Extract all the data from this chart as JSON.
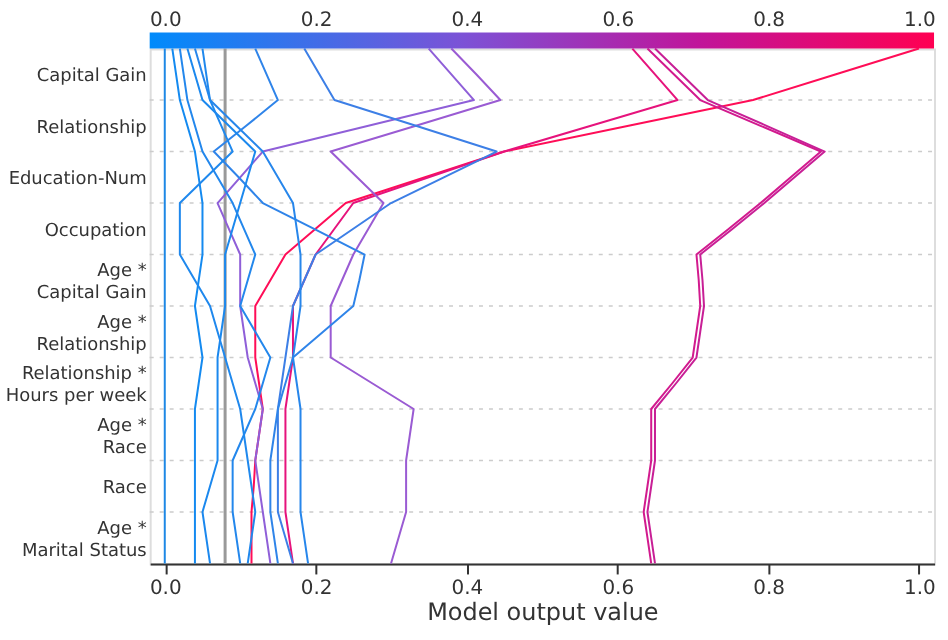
{
  "chart_data": {
    "type": "line",
    "orientation": "horizontal",
    "xlabel": "Model output value",
    "xlim": [
      -0.02,
      1.02
    ],
    "xticks": [
      {
        "value": 0,
        "label": "0.0"
      },
      0.2,
      0.4,
      0.6,
      0.8,
      {
        "value": 1,
        "label": "1.0"
      }
    ],
    "x2lim": [
      -0.02,
      1.02
    ],
    "x2ticks": [
      {
        "value": 0,
        "label": "0.0"
      },
      0.2,
      0.4,
      0.6,
      0.8,
      {
        "value": 1,
        "label": "1.0"
      }
    ],
    "categories": [
      null,
      "Capital Gain",
      null,
      "Relationship",
      null,
      "Education-Num",
      null,
      "Occupation",
      null,
      "Age *\nCapital Gain",
      null,
      "Age *\nRelationship",
      null,
      "Relationship *\nHours per week",
      null,
      "Age *\nRace",
      null,
      "Race",
      null,
      "Age *\nMarital Status",
      null
    ],
    "grid": "y",
    "line_style": "solid",
    "marker": "none",
    "legend": false,
    "ref_lines": [
      {
        "axis": "x",
        "value": 0.08,
        "label": null,
        "color": "#999999"
      }
    ],
    "series": [
      {
        "color": "#ff0d57",
        "values": [
          1.0,
          0.89,
          0.78,
          0.615,
          0.45,
          0.345,
          0.24,
          0.2,
          0.16,
          0.14,
          0.12,
          0.12,
          0.12,
          0.125,
          0.13,
          0.125,
          0.12,
          0.118,
          0.115,
          0.115,
          0.115
        ]
      },
      {
        "color": "#e6137c",
        "values": [
          0.62,
          0.65,
          0.68,
          0.565,
          0.45,
          0.35,
          0.25,
          0.225,
          0.2,
          0.185,
          0.17,
          0.17,
          0.17,
          0.165,
          0.16,
          0.16,
          0.16,
          0.16,
          0.16,
          0.165,
          0.17
        ]
      },
      {
        "color": "#d21a8e",
        "values": [
          0.64,
          0.675,
          0.71,
          0.79,
          0.87,
          0.83,
          0.79,
          0.748,
          0.705,
          0.708,
          0.71,
          0.705,
          0.7,
          0.673,
          0.645,
          0.645,
          0.645,
          0.64,
          0.635,
          0.64,
          0.645
        ]
      },
      {
        "color": "#c81f96",
        "values": [
          0.65,
          0.685,
          0.72,
          0.798,
          0.875,
          0.835,
          0.795,
          0.753,
          0.71,
          0.713,
          0.715,
          0.71,
          0.705,
          0.678,
          0.65,
          0.65,
          0.65,
          0.645,
          0.64,
          0.645,
          0.65
        ]
      },
      {
        "color": "#9a5bd3",
        "values": [
          0.38,
          0.413,
          0.445,
          0.333,
          0.22,
          0.255,
          0.29,
          0.27,
          0.25,
          0.235,
          0.22,
          0.22,
          0.22,
          0.275,
          0.33,
          0.325,
          0.32,
          0.32,
          0.32,
          0.31,
          0.3
        ]
      },
      {
        "color": "#8f5fd8",
        "values": [
          0.35,
          0.38,
          0.41,
          0.27,
          0.13,
          0.1,
          0.07,
          0.085,
          0.1,
          0.1,
          0.1,
          0.105,
          0.11,
          0.12,
          0.13,
          0.125,
          0.12,
          0.125,
          0.13,
          0.135,
          0.14
        ]
      },
      {
        "color": "#1e88e5",
        "values": [
          0.0,
          0.0,
          0.0,
          0.0,
          0.0,
          0.0,
          0.0,
          0.0,
          0.0,
          0.0,
          0.0,
          0.0,
          0.0,
          0.0,
          0.0,
          0.0,
          0.0,
          0.0,
          0.0,
          0.0,
          0.0
        ]
      },
      {
        "color": "#3d7fe6",
        "values": [
          0.185,
          0.205,
          0.225,
          0.333,
          0.44,
          0.37,
          0.3,
          0.25,
          0.2,
          0.185,
          0.17,
          0.165,
          0.16,
          0.155,
          0.15,
          0.15,
          0.15,
          0.15,
          0.15,
          0.16,
          0.17
        ]
      },
      {
        "color": "#2f84e9",
        "values": [
          0.12,
          0.135,
          0.15,
          0.108,
          0.065,
          0.098,
          0.13,
          0.198,
          0.265,
          0.258,
          0.25,
          0.21,
          0.17,
          0.16,
          0.15,
          0.145,
          0.14,
          0.14,
          0.14,
          0.145,
          0.15
        ]
      },
      {
        "color": "#148af0",
        "values": [
          0.01,
          0.015,
          0.02,
          0.03,
          0.04,
          0.045,
          0.05,
          0.05,
          0.05,
          0.045,
          0.04,
          0.045,
          0.05,
          0.045,
          0.04,
          0.04,
          0.04,
          0.04,
          0.04,
          0.04,
          0.04
        ]
      },
      {
        "color": "#1b88ee",
        "values": [
          0.03,
          0.04,
          0.05,
          0.085,
          0.12,
          0.11,
          0.1,
          0.09,
          0.08,
          0.08,
          0.08,
          0.075,
          0.07,
          0.07,
          0.07,
          0.07,
          0.07,
          0.06,
          0.05,
          0.055,
          0.06
        ]
      },
      {
        "color": "#2786eb",
        "values": [
          0.04,
          0.05,
          0.06,
          0.095,
          0.13,
          0.15,
          0.17,
          0.175,
          0.18,
          0.18,
          0.18,
          0.175,
          0.17,
          0.175,
          0.18,
          0.18,
          0.18,
          0.18,
          0.18,
          0.185,
          0.19
        ]
      },
      {
        "color": "#2387ec",
        "values": [
          0.02,
          0.025,
          0.03,
          0.04,
          0.05,
          0.07,
          0.09,
          0.105,
          0.12,
          0.11,
          0.1,
          0.12,
          0.14,
          0.13,
          0.12,
          0.105,
          0.09,
          0.09,
          0.09,
          0.095,
          0.1
        ]
      },
      {
        "color": "#1f88ed",
        "values": [
          0.05,
          0.055,
          0.06,
          0.075,
          0.09,
          0.055,
          0.02,
          0.02,
          0.02,
          0.04,
          0.06,
          0.07,
          0.08,
          0.09,
          0.1,
          0.105,
          0.11,
          0.115,
          0.12,
          0.115,
          0.11
        ]
      }
    ]
  }
}
